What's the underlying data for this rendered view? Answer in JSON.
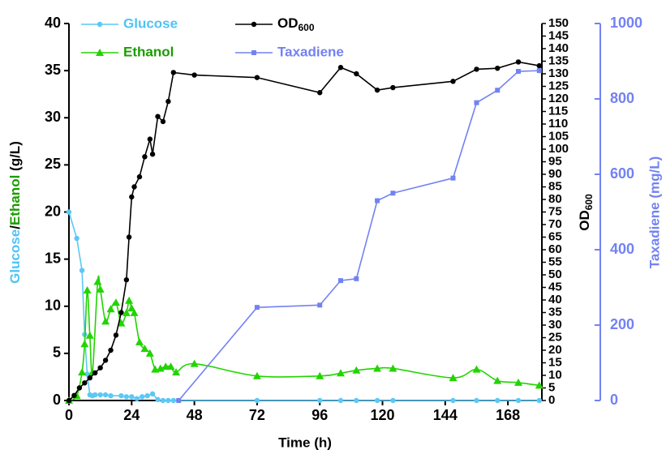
{
  "chart_data": {
    "type": "line",
    "x_label": "Time (h)",
    "y_label": [
      {
        "text": "Glucose",
        "color": "#4fc3f7"
      },
      {
        "text": "/",
        "color": "#000000"
      },
      {
        "text": "Ethanol",
        "color": "#1a9c00"
      },
      {
        "text": " (g/L)",
        "color": "#000000"
      }
    ],
    "y2_label": {
      "main": "OD",
      "sub": "600"
    },
    "y3_label": "Taxadiene (mg/L)",
    "y3_color": "#7282f2",
    "xlim": [
      0,
      181
    ],
    "xticks": [
      0,
      24,
      48,
      72,
      96,
      120,
      144,
      168
    ],
    "ylim": [
      0,
      40
    ],
    "yticks": [
      0,
      5,
      10,
      15,
      20,
      25,
      30,
      35,
      40
    ],
    "y2lim": [
      0,
      150
    ],
    "y2ticks": [
      0,
      5,
      10,
      15,
      20,
      25,
      30,
      35,
      40,
      45,
      50,
      55,
      60,
      65,
      70,
      75,
      80,
      85,
      90,
      95,
      100,
      105,
      110,
      115,
      120,
      125,
      130,
      135,
      140,
      145,
      150
    ],
    "y3lim": [
      0,
      1000
    ],
    "y3ticks": [
      0,
      200,
      400,
      600,
      800,
      1000
    ],
    "series": [
      {
        "name": "Glucose",
        "legend_color": "#4fc3f7",
        "color": "#5cc8f5",
        "marker": "circle",
        "axis": "y",
        "smooth": false,
        "x": [
          0,
          3,
          5,
          6,
          7,
          8,
          9,
          10,
          12,
          14,
          16,
          20,
          22,
          24,
          26,
          28,
          30,
          32,
          34,
          36,
          38,
          40,
          42,
          72,
          96,
          104,
          110,
          118,
          124,
          147,
          156,
          164,
          172,
          180
        ],
        "values": [
          20,
          17.2,
          13.8,
          7,
          2.8,
          0.6,
          0.5,
          0.6,
          0.6,
          0.6,
          0.5,
          0.5,
          0.4,
          0.4,
          0.2,
          0.4,
          0.5,
          0.7,
          0.1,
          0,
          0,
          0,
          0,
          0,
          0,
          0,
          0,
          0,
          0,
          0,
          0,
          0,
          0,
          0
        ]
      },
      {
        "name": "Ethanol",
        "legend_color": "#1a9c00",
        "color": "#22d400",
        "marker": "triangle",
        "axis": "y",
        "smooth": true,
        "x": [
          0,
          3,
          5,
          6,
          7,
          8,
          9,
          11,
          12,
          14,
          16,
          18,
          20,
          22,
          23,
          24,
          25,
          27,
          29,
          31,
          33,
          35,
          37,
          39,
          41,
          48,
          72,
          96,
          104,
          110,
          118,
          124,
          147,
          156,
          164,
          172,
          180
        ],
        "values": [
          0,
          0.5,
          3,
          6,
          11.7,
          6.9,
          3,
          12.6,
          11.8,
          8.4,
          9.7,
          10.4,
          8.2,
          9.3,
          10.6,
          9.8,
          9.3,
          6.2,
          5.5,
          5,
          3.3,
          3.4,
          3.6,
          3.6,
          3,
          3.9,
          2.6,
          2.6,
          2.9,
          3.2,
          3.4,
          3.4,
          2.4,
          3.3,
          2.1,
          1.9,
          1.6
        ]
      },
      {
        "name": {
          "main": "OD",
          "sub": "600"
        },
        "legend_color": "#000000",
        "color": "#000000",
        "marker": "circle",
        "axis": "y2",
        "smooth": false,
        "x": [
          0,
          2,
          4,
          6,
          8,
          10,
          12,
          14,
          16,
          18,
          20,
          22,
          23,
          24,
          25,
          27,
          29,
          31,
          32,
          34,
          36,
          38,
          40,
          48,
          72,
          96,
          104,
          110,
          118,
          124,
          147,
          156,
          164,
          172,
          180
        ],
        "values": [
          0,
          2,
          5,
          7,
          9,
          11,
          13,
          16,
          20,
          26,
          35,
          48,
          65,
          81,
          85,
          89,
          97,
          104,
          98,
          113,
          111,
          119,
          130.5,
          129.5,
          128.5,
          122.5,
          132.5,
          130,
          123.5,
          124.5,
          127,
          131.8,
          132.2,
          134.7,
          133.2
        ]
      },
      {
        "name": "Taxadiene",
        "legend_color": "#7282f2",
        "color": "#7282f2",
        "marker": "square",
        "axis": "y3",
        "smooth": false,
        "x": [
          42,
          72,
          96,
          104,
          110,
          118,
          124,
          147,
          156,
          164,
          172,
          180
        ],
        "values": [
          0,
          247,
          253,
          318,
          323,
          530,
          550,
          590,
          790,
          823,
          873,
          875
        ]
      }
    ]
  }
}
